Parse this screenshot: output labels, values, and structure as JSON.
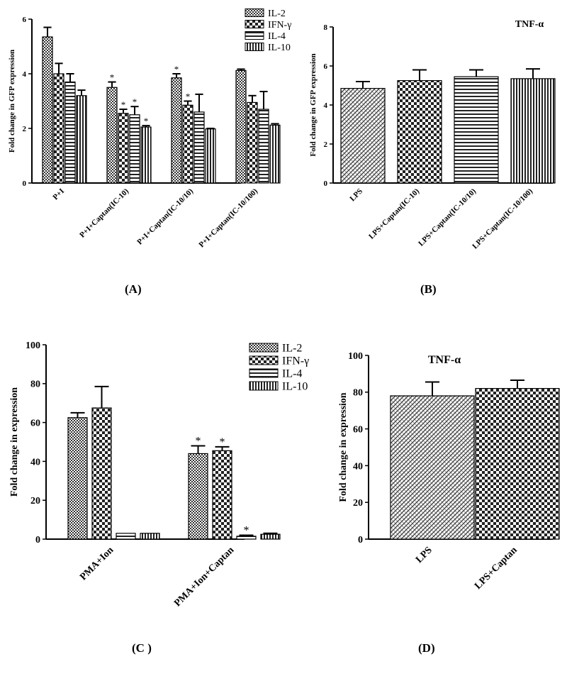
{
  "colors": {
    "ink": "#000000",
    "background": "#ffffff",
    "bar_fill": "#ffffff",
    "hatch": "#222222"
  },
  "panel_labels": {
    "a": "(A)",
    "b": "(B)",
    "c": "(C )",
    "d": "(D)"
  },
  "chart_data": [
    {
      "id": "A",
      "type": "bar",
      "title": "",
      "ylabel": "Fold change in GFP expression",
      "xlabel": "",
      "ylim": [
        0,
        6
      ],
      "yticks": [
        0,
        2,
        4,
        6
      ],
      "categories": [
        "P+I",
        "P+I+Captan(IC-10)",
        "P+I+Captan(IC-10/10)",
        "P+I+Captan(IC-10/100)"
      ],
      "legend_position": "top-right",
      "series": [
        {
          "name": "IL-2",
          "pattern": "dots",
          "values": [
            5.35,
            3.5,
            3.85,
            4.12
          ],
          "errors": [
            0.35,
            0.2,
            0.15,
            0.05
          ],
          "marks": [
            "",
            "*",
            "*",
            ""
          ]
        },
        {
          "name": "IFN-γ",
          "pattern": "checks",
          "values": [
            4.0,
            2.55,
            2.85,
            2.95
          ],
          "errors": [
            0.38,
            0.15,
            0.15,
            0.25
          ],
          "marks": [
            "",
            "*",
            "*",
            ""
          ]
        },
        {
          "name": "IL-4",
          "pattern": "hlines",
          "values": [
            3.7,
            2.5,
            2.6,
            2.7
          ],
          "errors": [
            0.3,
            0.3,
            0.65,
            0.65
          ],
          "marks": [
            "",
            "*",
            "",
            ""
          ]
        },
        {
          "name": "IL-10",
          "pattern": "vlines",
          "values": [
            3.2,
            2.05,
            1.98,
            2.12
          ],
          "errors": [
            0.2,
            0.05,
            0.02,
            0.05
          ],
          "marks": [
            "",
            "*",
            "",
            ""
          ]
        }
      ]
    },
    {
      "id": "B",
      "type": "bar",
      "title": "TNF-α",
      "ylabel": "Fold change in GFP expression",
      "xlabel": "",
      "ylim": [
        0,
        8
      ],
      "yticks": [
        0,
        2,
        4,
        6,
        8
      ],
      "categories": [
        "LPS",
        "LPS+Captan(IC-10)",
        "LPS+Captan(IC-10/10)",
        "LPS+Captan(IC-10/100)"
      ],
      "bar_patterns": [
        "grain",
        "checks",
        "hlines",
        "vlines"
      ],
      "series": [
        {
          "name": "TNF-α",
          "values": [
            4.85,
            5.25,
            5.45,
            5.35
          ],
          "errors": [
            0.35,
            0.55,
            0.35,
            0.5
          ]
        }
      ]
    },
    {
      "id": "C",
      "type": "bar",
      "title": "",
      "ylabel": "Fold change in expression",
      "xlabel": "",
      "ylim": [
        0,
        100
      ],
      "yticks": [
        0,
        20,
        40,
        60,
        80,
        100
      ],
      "categories": [
        "PMA+Ion",
        "PMA+Ion+Captan"
      ],
      "legend_position": "top-right",
      "series": [
        {
          "name": "IL-2",
          "pattern": "dots",
          "values": [
            62.5,
            44
          ],
          "errors": [
            2.5,
            4
          ],
          "marks": [
            "",
            "*"
          ]
        },
        {
          "name": "IFN-γ",
          "pattern": "checks",
          "values": [
            67.5,
            45.5
          ],
          "errors": [
            11,
            2
          ],
          "marks": [
            "",
            "*"
          ]
        },
        {
          "name": "IL-4",
          "pattern": "hlines",
          "values": [
            3,
            1.5
          ],
          "errors": [
            0,
            0.5
          ],
          "marks": [
            "",
            "*"
          ]
        },
        {
          "name": "IL-10",
          "pattern": "vlines",
          "values": [
            3,
            2.5
          ],
          "errors": [
            0,
            0.5
          ],
          "marks": [
            "",
            ""
          ]
        }
      ]
    },
    {
      "id": "D",
      "type": "bar",
      "title": "TNF-α",
      "ylabel": "Fold change in expression",
      "xlabel": "",
      "ylim": [
        0,
        100
      ],
      "yticks": [
        0,
        20,
        40,
        60,
        80,
        100
      ],
      "categories": [
        "LPS",
        "LPS+Captan"
      ],
      "bar_patterns": [
        "grain",
        "checks"
      ],
      "series": [
        {
          "name": "TNF-α",
          "values": [
            78,
            82
          ],
          "errors": [
            7.5,
            4.5
          ]
        }
      ]
    }
  ]
}
